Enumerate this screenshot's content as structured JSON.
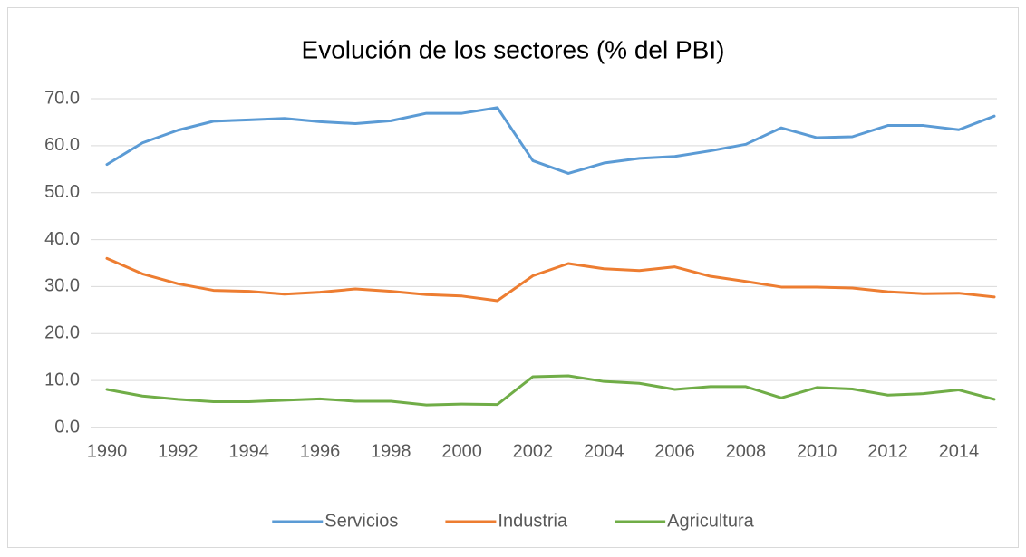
{
  "chart_data": {
    "type": "line",
    "title": "Evolución de los sectores (% del PBI)",
    "x": [
      1990,
      1991,
      1992,
      1993,
      1994,
      1995,
      1996,
      1997,
      1998,
      1999,
      2000,
      2001,
      2002,
      2003,
      2004,
      2005,
      2006,
      2007,
      2008,
      2009,
      2010,
      2011,
      2012,
      2013,
      2014,
      2015
    ],
    "xlim": [
      1990,
      2015
    ],
    "xticks": [
      1990,
      1992,
      1994,
      1996,
      1998,
      2000,
      2002,
      2004,
      2006,
      2008,
      2010,
      2012,
      2014
    ],
    "ylim": [
      0,
      70
    ],
    "yticks": [
      {
        "value": 0,
        "label": "0.0"
      },
      {
        "value": 10,
        "label": "10.0"
      },
      {
        "value": 20,
        "label": "20.0"
      },
      {
        "value": 30,
        "label": "30.0"
      },
      {
        "value": 40,
        "label": "40.0"
      },
      {
        "value": 50,
        "label": "50.0"
      },
      {
        "value": 60,
        "label": "60.0"
      },
      {
        "value": 70,
        "label": "70.0"
      }
    ],
    "grid": true,
    "legend": "bottom",
    "series": [
      {
        "name": "Servicios",
        "color": "#5b9bd5",
        "values": [
          56.0,
          60.6,
          63.3,
          65.2,
          65.5,
          65.8,
          65.1,
          64.7,
          65.3,
          66.9,
          66.9,
          68.1,
          56.8,
          54.1,
          56.3,
          57.3,
          57.7,
          58.9,
          60.3,
          63.8,
          61.7,
          61.9,
          64.3,
          64.3,
          63.4,
          66.3
        ]
      },
      {
        "name": "Industria",
        "color": "#ed7d31",
        "values": [
          36.0,
          32.7,
          30.6,
          29.2,
          29.0,
          28.4,
          28.8,
          29.5,
          29.0,
          28.3,
          28.0,
          27.0,
          32.3,
          34.9,
          33.8,
          33.4,
          34.2,
          32.2,
          31.1,
          29.9,
          29.9,
          29.7,
          28.9,
          28.5,
          28.6,
          27.8
        ]
      },
      {
        "name": "Agricultura",
        "color": "#70ad47",
        "values": [
          8.1,
          6.7,
          6.0,
          5.5,
          5.5,
          5.8,
          6.1,
          5.6,
          5.6,
          4.8,
          5.0,
          4.9,
          10.8,
          11.0,
          9.8,
          9.4,
          8.1,
          8.7,
          8.7,
          6.3,
          8.5,
          8.2,
          6.9,
          7.2,
          8.0,
          6.0
        ]
      }
    ]
  }
}
